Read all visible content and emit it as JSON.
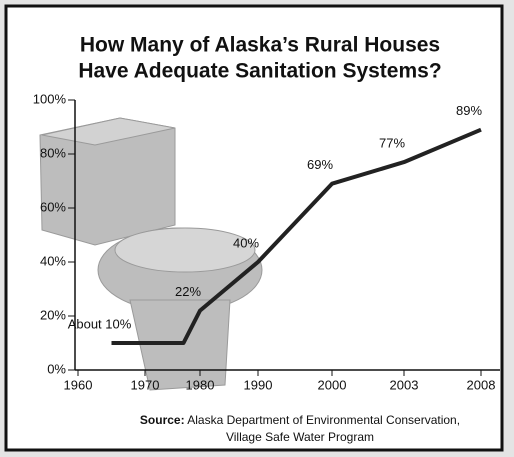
{
  "chart_data": {
    "type": "line",
    "title": [
      "How Many of Alaska’s Rural Houses",
      "Have Adequate Sanitation Systems?"
    ],
    "x": [
      1965,
      1977,
      1980,
      1990,
      2000,
      2003,
      2008
    ],
    "series": [
      {
        "color": "#222222",
        "values": [
          10,
          10,
          22,
          40,
          69,
          77,
          89
        ],
        "value_labels": [
          "About 10%",
          null,
          "22%",
          "40%",
          "69%",
          "77%",
          "89%"
        ]
      }
    ],
    "xlim": [
      1960,
      2008
    ],
    "xticks": [
      1960,
      1970,
      1980,
      1990,
      2000,
      2003,
      2008
    ],
    "ylim": [
      0,
      100
    ],
    "yticks": [
      {
        "value": 0,
        "label": "0%"
      },
      {
        "value": 20,
        "label": "20%"
      },
      {
        "value": 40,
        "label": "40%"
      },
      {
        "value": 60,
        "label": "60%"
      },
      {
        "value": 80,
        "label": "80%"
      },
      {
        "value": 100,
        "label": "100%"
      }
    ],
    "source_label": "Source:",
    "source": [
      "Alaska Department of Environmental Conservation,",
      "Village Safe Water Program"
    ]
  }
}
